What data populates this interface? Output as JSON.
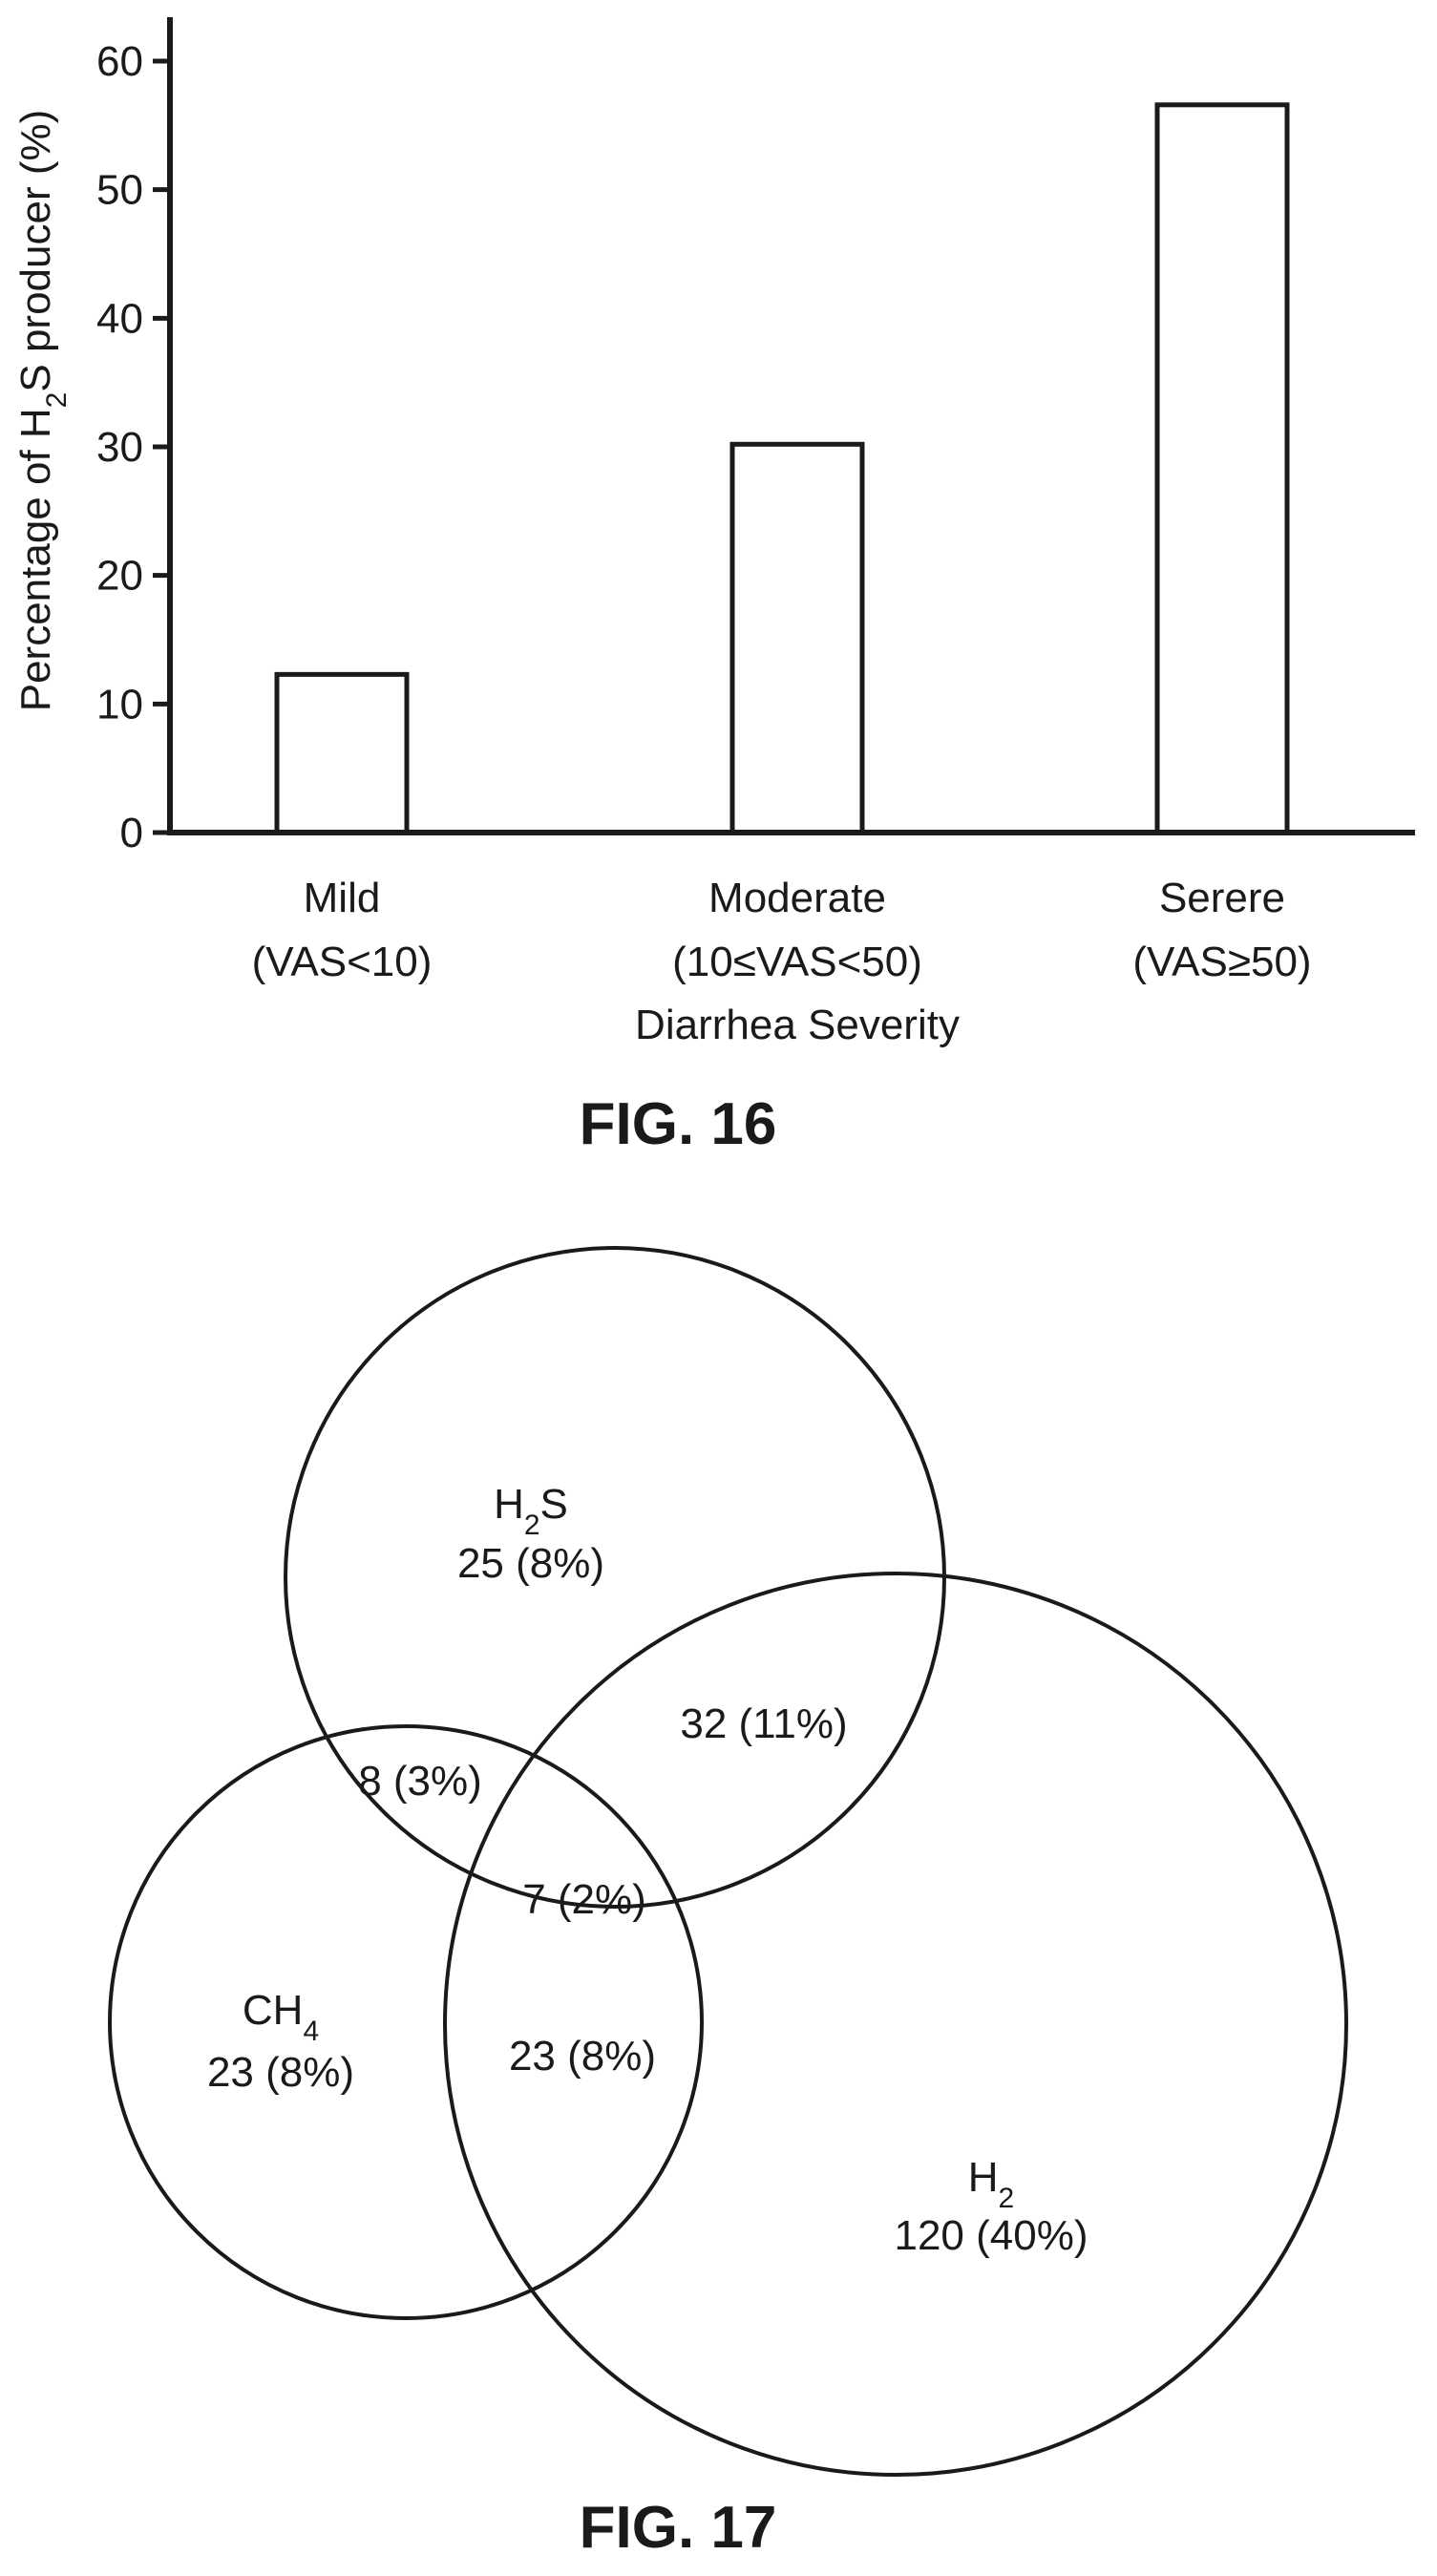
{
  "chart_data": [
    {
      "type": "bar",
      "caption": "FIG. 16",
      "categories": [
        "Mild",
        "Moderate",
        "Serere"
      ],
      "category_sublabels": [
        "(VAS<10)",
        "(10≤VAS<50)",
        "(VAS≥50)"
      ],
      "values": [
        12.3,
        30.2,
        56.6
      ],
      "xlabel": "Diarrhea Severity",
      "ylabel": "Percentage of H2S producer (%)",
      "ylim": [
        0,
        60
      ],
      "yticks": [
        0,
        10,
        20,
        30,
        40,
        50,
        60
      ],
      "grid": false,
      "bar_fill": "#ffffff",
      "bar_stroke": "#1a1a1a"
    },
    {
      "type": "venn",
      "caption": "FIG. 17",
      "sets": [
        {
          "name": "H2S",
          "count": "25 (8%)"
        },
        {
          "name": "CH4",
          "count": "23 (8%)"
        },
        {
          "name": "H2",
          "count": "120 (40%)"
        }
      ],
      "intersections": [
        {
          "sets": [
            "H2S",
            "CH4"
          ],
          "label": "8 (3%)"
        },
        {
          "sets": [
            "H2S",
            "H2"
          ],
          "label": "32 (11%)"
        },
        {
          "sets": [
            "CH4",
            "H2"
          ],
          "label": "23 (8%)"
        },
        {
          "sets": [
            "H2S",
            "CH4",
            "H2"
          ],
          "label": "7 (2%)"
        }
      ]
    }
  ]
}
